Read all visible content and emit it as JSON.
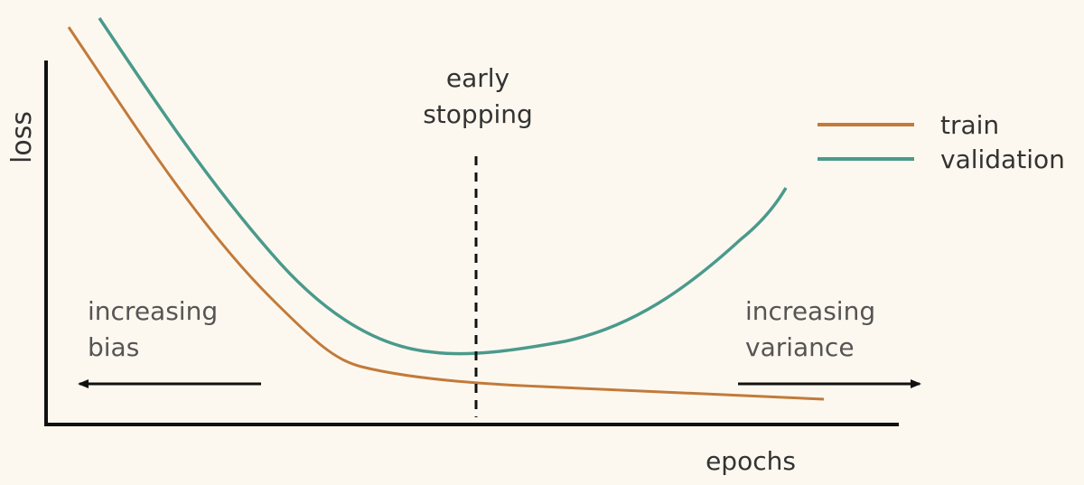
{
  "diagram": {
    "ylabel": "loss",
    "xlabel": "epochs",
    "early_stopping": {
      "line1": "early",
      "line2": "stopping"
    },
    "left_annotation": {
      "line1": "increasing",
      "line2": "bias"
    },
    "right_annotation": {
      "line1": "increasing",
      "line2": "variance"
    },
    "legend": [
      {
        "label": "train",
        "color": "#c27a3a"
      },
      {
        "label": "validation",
        "color": "#4a9a8c"
      }
    ],
    "colors": {
      "background": "#fdf8ef",
      "axes": "#111111",
      "text": "#333333",
      "annotation_text": "#555555",
      "train": "#c27a3a",
      "validation": "#4a9a8c"
    }
  }
}
